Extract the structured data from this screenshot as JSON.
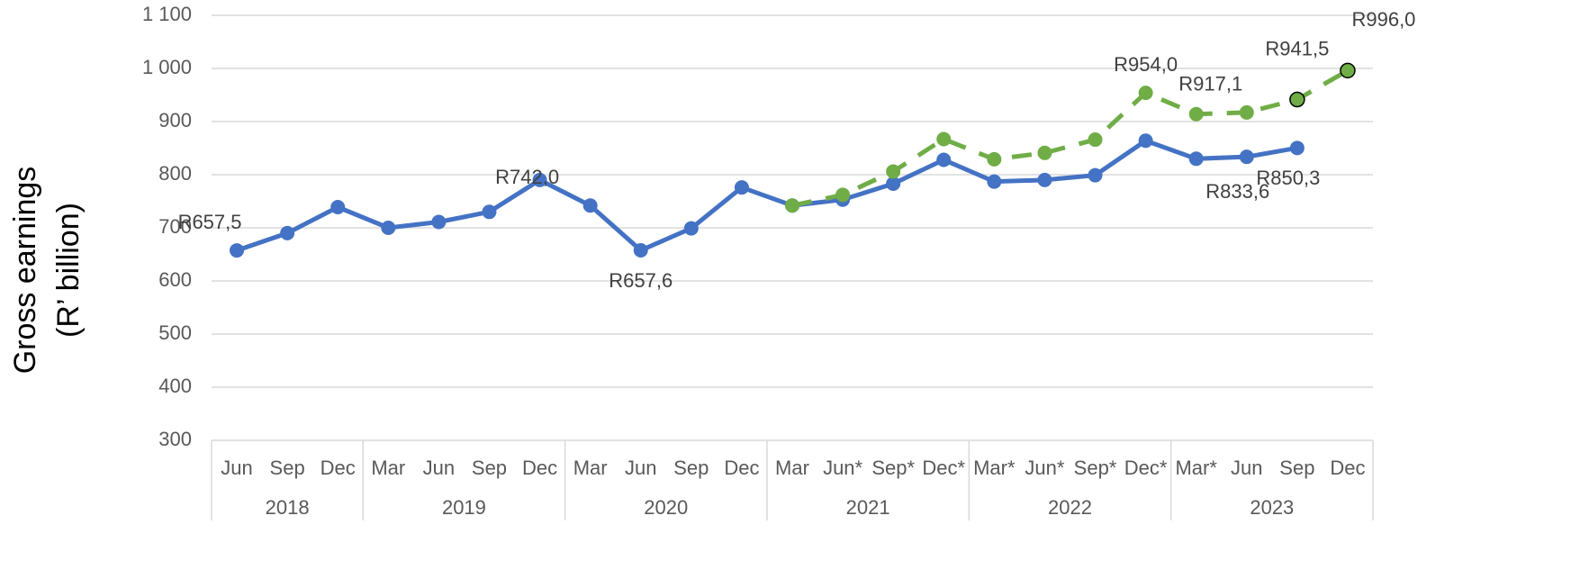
{
  "chart_data": {
    "type": "line",
    "y_label": [
      "Gross earnings",
      "(R’ billion)"
    ],
    "categories": [
      "Jun",
      "Sep",
      "Dec",
      "Mar",
      "Jun",
      "Sep",
      "Dec",
      "Mar",
      "Jun",
      "Sep",
      "Dec",
      "Mar",
      "Jun*",
      "Sep*",
      "Dec*",
      "Mar*",
      "Jun*",
      "Sep*",
      "Dec*",
      "Mar*",
      "Jun",
      "Sep",
      "Dec"
    ],
    "groups": [
      {
        "label": "2018",
        "span": 3
      },
      {
        "label": "2019",
        "span": 4
      },
      {
        "label": "2020",
        "span": 4
      },
      {
        "label": "2021",
        "span": 4
      },
      {
        "label": "2022",
        "span": 4
      },
      {
        "label": "2023",
        "span": 4
      }
    ],
    "ylim": [
      300,
      1100
    ],
    "yticks": [
      300,
      400,
      500,
      600,
      700,
      800,
      900,
      {
        "value": 1000,
        "label": "1 000"
      },
      {
        "value": 1100,
        "label": "1 100"
      }
    ],
    "grid": true,
    "series": [
      {
        "color": "#4472c4",
        "dashed": false,
        "values": [
          657.5,
          690,
          739,
          700,
          711,
          730,
          790,
          742.0,
          657.6,
          699,
          776,
          742,
          753,
          783,
          828,
          787,
          790,
          799,
          864,
          830,
          833.6,
          850.3,
          null
        ],
        "value_labels": [
          "R657,5",
          null,
          null,
          null,
          null,
          null,
          null,
          "R742,0",
          "R657,6",
          null,
          null,
          null,
          null,
          null,
          null,
          null,
          null,
          null,
          null,
          null,
          "R833,6",
          "R850,3",
          null
        ]
      },
      {
        "color": "#70ad47",
        "dashed": true,
        "values": [
          null,
          null,
          null,
          null,
          null,
          null,
          null,
          null,
          null,
          null,
          null,
          742,
          762,
          806,
          867,
          829,
          841,
          866,
          954.0,
          914,
          917.1,
          941.5,
          996.0
        ],
        "value_labels": [
          null,
          null,
          null,
          null,
          null,
          null,
          null,
          null,
          null,
          null,
          null,
          null,
          null,
          null,
          null,
          null,
          null,
          null,
          "R954,0",
          null,
          "R917,1",
          "R941,5",
          "R996,0"
        ]
      }
    ]
  }
}
